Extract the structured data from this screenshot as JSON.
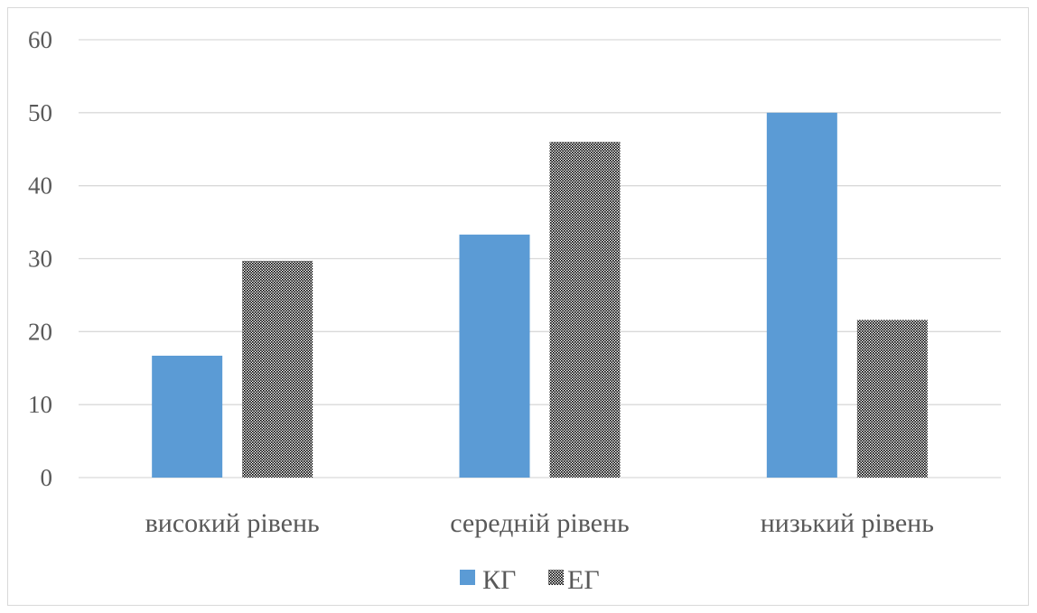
{
  "chart_data": {
    "type": "bar",
    "categories": [
      "високий рівень",
      "середній рівень",
      "низький рівень"
    ],
    "series": [
      {
        "name": "КГ",
        "values": [
          16.7,
          33.3,
          50
        ],
        "color": "#5b9bd5",
        "pattern": "solid"
      },
      {
        "name": "ЕГ",
        "values": [
          29.7,
          46,
          21.6
        ],
        "color": "#000000",
        "pattern": "dotted"
      }
    ],
    "title": "",
    "xlabel": "",
    "ylabel": "",
    "ylim": [
      0,
      60
    ],
    "yticks": [
      0,
      10,
      20,
      30,
      40,
      50,
      60
    ],
    "grid": true,
    "legend_position": "bottom"
  }
}
